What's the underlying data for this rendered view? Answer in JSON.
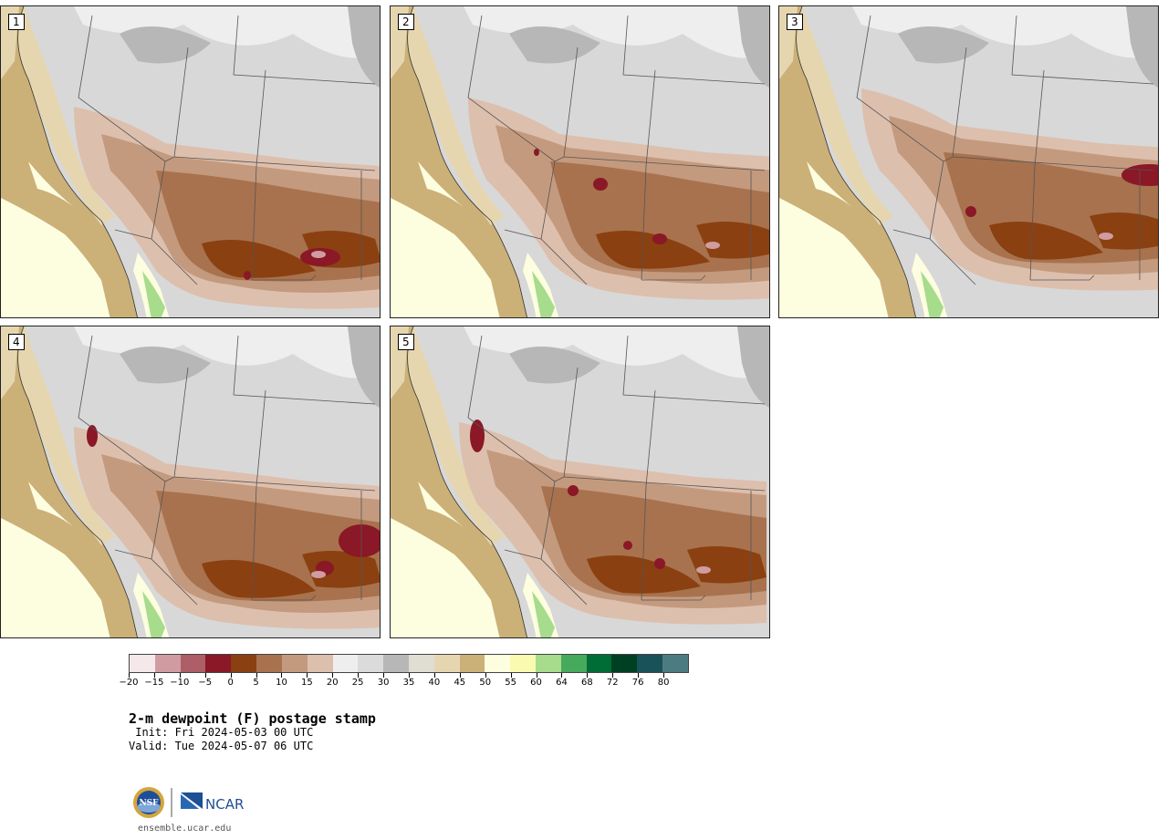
{
  "panels": [
    {
      "label": "1"
    },
    {
      "label": "2"
    },
    {
      "label": "3"
    },
    {
      "label": "4"
    },
    {
      "label": "5"
    }
  ],
  "colorbar": {
    "colors": [
      "#f5e8ea",
      "#d09ca2",
      "#ae5e66",
      "#8a1826",
      "#8a4010",
      "#a8724e",
      "#c49a7e",
      "#ddbfad",
      "#eeeeee",
      "#dbdbdb",
      "#b7b7b7",
      "#e0ded2",
      "#e6d6b0",
      "#cbb078",
      "#fdfde0",
      "#fafab0",
      "#a6dc8c",
      "#46aa5c",
      "#006c36",
      "#004022",
      "#1a525a",
      "#4d7c80"
    ],
    "tick_labels": [
      "−20",
      "−15",
      "−10",
      "−5",
      "0",
      "5",
      "10",
      "15",
      "20",
      "25",
      "30",
      "35",
      "40",
      "45",
      "50",
      "55",
      "60",
      "64",
      "68",
      "72",
      "76",
      "80"
    ]
  },
  "map_colors": {
    "ocean": "#cbb078",
    "coast_light": "#fdfde0",
    "land_gray": "#d8d8d8",
    "land_light": "#eeeeee",
    "land_dark": "#b7b7b7",
    "tan": "#e6d6b0",
    "brown_light": "#ddbfad",
    "brown_mid": "#c49a7e",
    "brown": "#a8724e",
    "brown_dark": "#8a4010",
    "maroon": "#8a1826",
    "pink": "#d09ca2",
    "green": "#a6dc8c"
  },
  "text": {
    "title": "2-m dewpoint (F) postage stamp",
    "init": " Init: Fri 2024-05-03 00 UTC",
    "valid": "Valid: Tue 2024-05-07 06 UTC",
    "logo_left": "NSF",
    "logo_right": "NCAR",
    "site": "ensemble.ucar.edu"
  }
}
